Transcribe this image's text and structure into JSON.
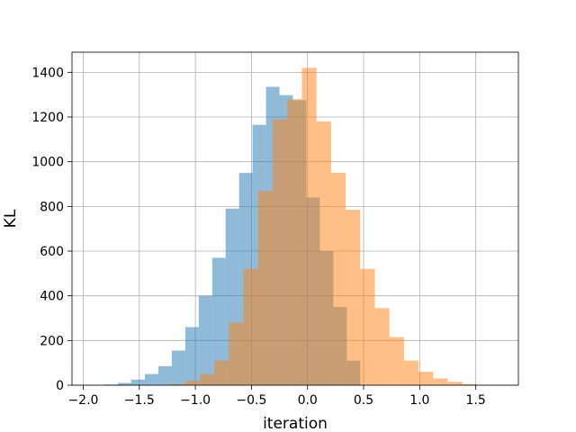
{
  "chart_data": {
    "type": "bar",
    "subtype": "overlaid-histogram",
    "title": "",
    "xlabel": "iteration",
    "ylabel": "KL",
    "xlim": [
      -2.1,
      1.88
    ],
    "ylim": [
      0,
      1490
    ],
    "xticks": [
      -2.0,
      -1.5,
      -1.0,
      -0.5,
      0.0,
      0.5,
      1.0,
      1.5
    ],
    "xtick_labels": [
      "−2.0",
      "−1.5",
      "−1.0",
      "−0.5",
      "0.0",
      "0.5",
      "1.0",
      "1.5"
    ],
    "yticks": [
      0,
      200,
      400,
      600,
      800,
      1000,
      1200,
      1400
    ],
    "ytick_labels": [
      "0",
      "200",
      "400",
      "600",
      "800",
      "1000",
      "1200",
      "1400"
    ],
    "grid": true,
    "legend": "none",
    "series": [
      {
        "color": "#1f77b4",
        "opacity": 0.5,
        "bin_edges": [
          -1.81,
          -1.69,
          -1.57,
          -1.45,
          -1.33,
          -1.21,
          -1.09,
          -0.97,
          -0.85,
          -0.73,
          -0.61,
          -0.49,
          -0.37,
          -0.25,
          -0.13,
          -0.01,
          0.11,
          0.23,
          0.35,
          0.47
        ],
        "counts": [
          3,
          10,
          25,
          50,
          85,
          155,
          260,
          400,
          570,
          790,
          950,
          1165,
          1335,
          1298,
          1275,
          840,
          600,
          350,
          110
        ]
      },
      {
        "color": "#ff7f0e",
        "opacity": 0.5,
        "bin_edges": [
          -1.22,
          -1.09,
          -0.96,
          -0.83,
          -0.7,
          -0.57,
          -0.44,
          -0.31,
          -0.18,
          -0.05,
          0.08,
          0.21,
          0.34,
          0.47,
          0.6,
          0.73,
          0.86,
          0.99,
          1.12,
          1.25,
          1.38,
          1.51
        ],
        "counts": [
          5,
          20,
          50,
          110,
          280,
          520,
          870,
          1190,
          1280,
          1420,
          1180,
          950,
          785,
          520,
          345,
          215,
          110,
          60,
          30,
          15,
          5
        ]
      }
    ]
  }
}
